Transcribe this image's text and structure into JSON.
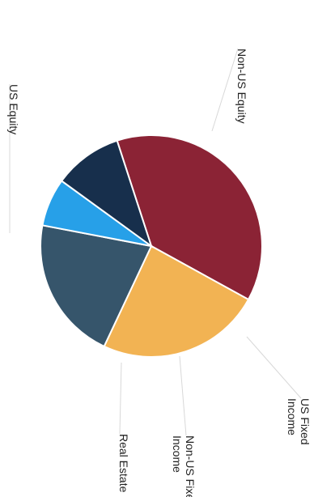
{
  "chart_data": {
    "type": "pie",
    "slices": [
      {
        "label": "US Equity",
        "label_lines": [
          "US Equity"
        ],
        "value": 38,
        "color": "#8b2335"
      },
      {
        "label": "Non-US Equity",
        "label_lines": [
          "Non-US Equity"
        ],
        "value": 24,
        "color": "#f2b353"
      },
      {
        "label": "US Fixed Income",
        "label_lines": [
          "US Fixed",
          "Income"
        ],
        "value": 21,
        "color": "#36556b"
      },
      {
        "label": "Non-US Fixed Income",
        "label_lines": [
          "Non-US Fixed",
          "Income"
        ],
        "value": 7,
        "color": "#27a0e8"
      },
      {
        "label": "Real Estate",
        "label_lines": [
          "Real Estate"
        ],
        "value": 10,
        "color": "#172f4c"
      }
    ]
  }
}
